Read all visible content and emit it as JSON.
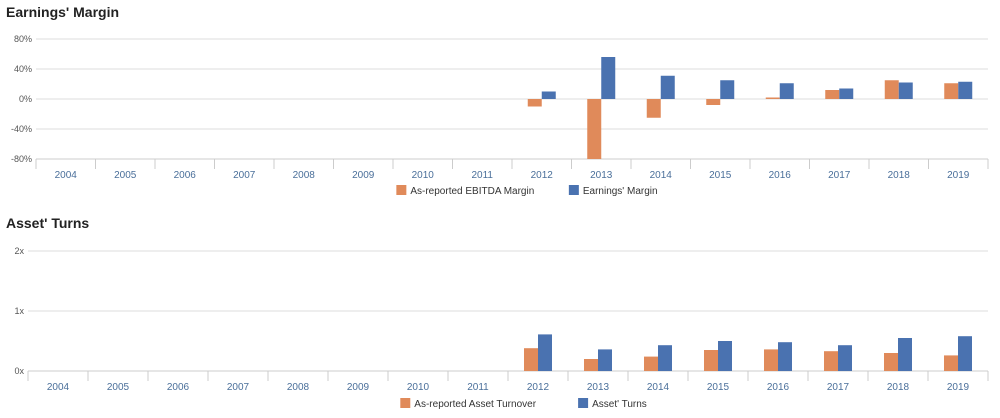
{
  "colors": {
    "series1": "#e08a5a",
    "series2": "#4a72b0",
    "grid": "#dddddd",
    "axis": "#cccccc"
  },
  "chart_data": [
    {
      "type": "bar",
      "title": "Earnings' Margin",
      "categories": [
        "2004",
        "2005",
        "2006",
        "2007",
        "2008",
        "2009",
        "2010",
        "2011",
        "2012",
        "2013",
        "2014",
        "2015",
        "2016",
        "2017",
        "2018",
        "2019"
      ],
      "series": [
        {
          "name": "As-reported EBITDA Margin",
          "values": [
            null,
            null,
            null,
            null,
            null,
            null,
            null,
            null,
            -10,
            -80,
            -25,
            -8,
            2,
            12,
            25,
            21
          ]
        },
        {
          "name": "Earnings' Margin",
          "values": [
            null,
            null,
            null,
            null,
            null,
            null,
            null,
            null,
            10,
            56,
            31,
            25,
            21,
            14,
            22,
            23
          ]
        }
      ],
      "yticks": [
        "80%",
        "40%",
        "0%",
        "-40%",
        "-80%"
      ],
      "ylim": [
        -80,
        80
      ],
      "legend": "bottom",
      "grid": true
    },
    {
      "type": "bar",
      "title": "Asset' Turns",
      "categories": [
        "2004",
        "2005",
        "2006",
        "2007",
        "2008",
        "2009",
        "2010",
        "2011",
        "2012",
        "2013",
        "2014",
        "2015",
        "2016",
        "2017",
        "2018",
        "2019"
      ],
      "series": [
        {
          "name": "As-reported Asset Turnover",
          "values": [
            null,
            null,
            null,
            null,
            null,
            null,
            null,
            null,
            0.38,
            0.2,
            0.24,
            0.35,
            0.36,
            0.33,
            0.3,
            0.26
          ]
        },
        {
          "name": "Asset' Turns",
          "values": [
            null,
            null,
            null,
            null,
            null,
            null,
            null,
            null,
            0.61,
            0.36,
            0.43,
            0.5,
            0.48,
            0.43,
            0.55,
            0.58
          ]
        }
      ],
      "yticks": [
        "2x",
        "1x",
        "0x"
      ],
      "ylim": [
        0,
        2
      ],
      "legend": "bottom",
      "grid": true
    }
  ]
}
